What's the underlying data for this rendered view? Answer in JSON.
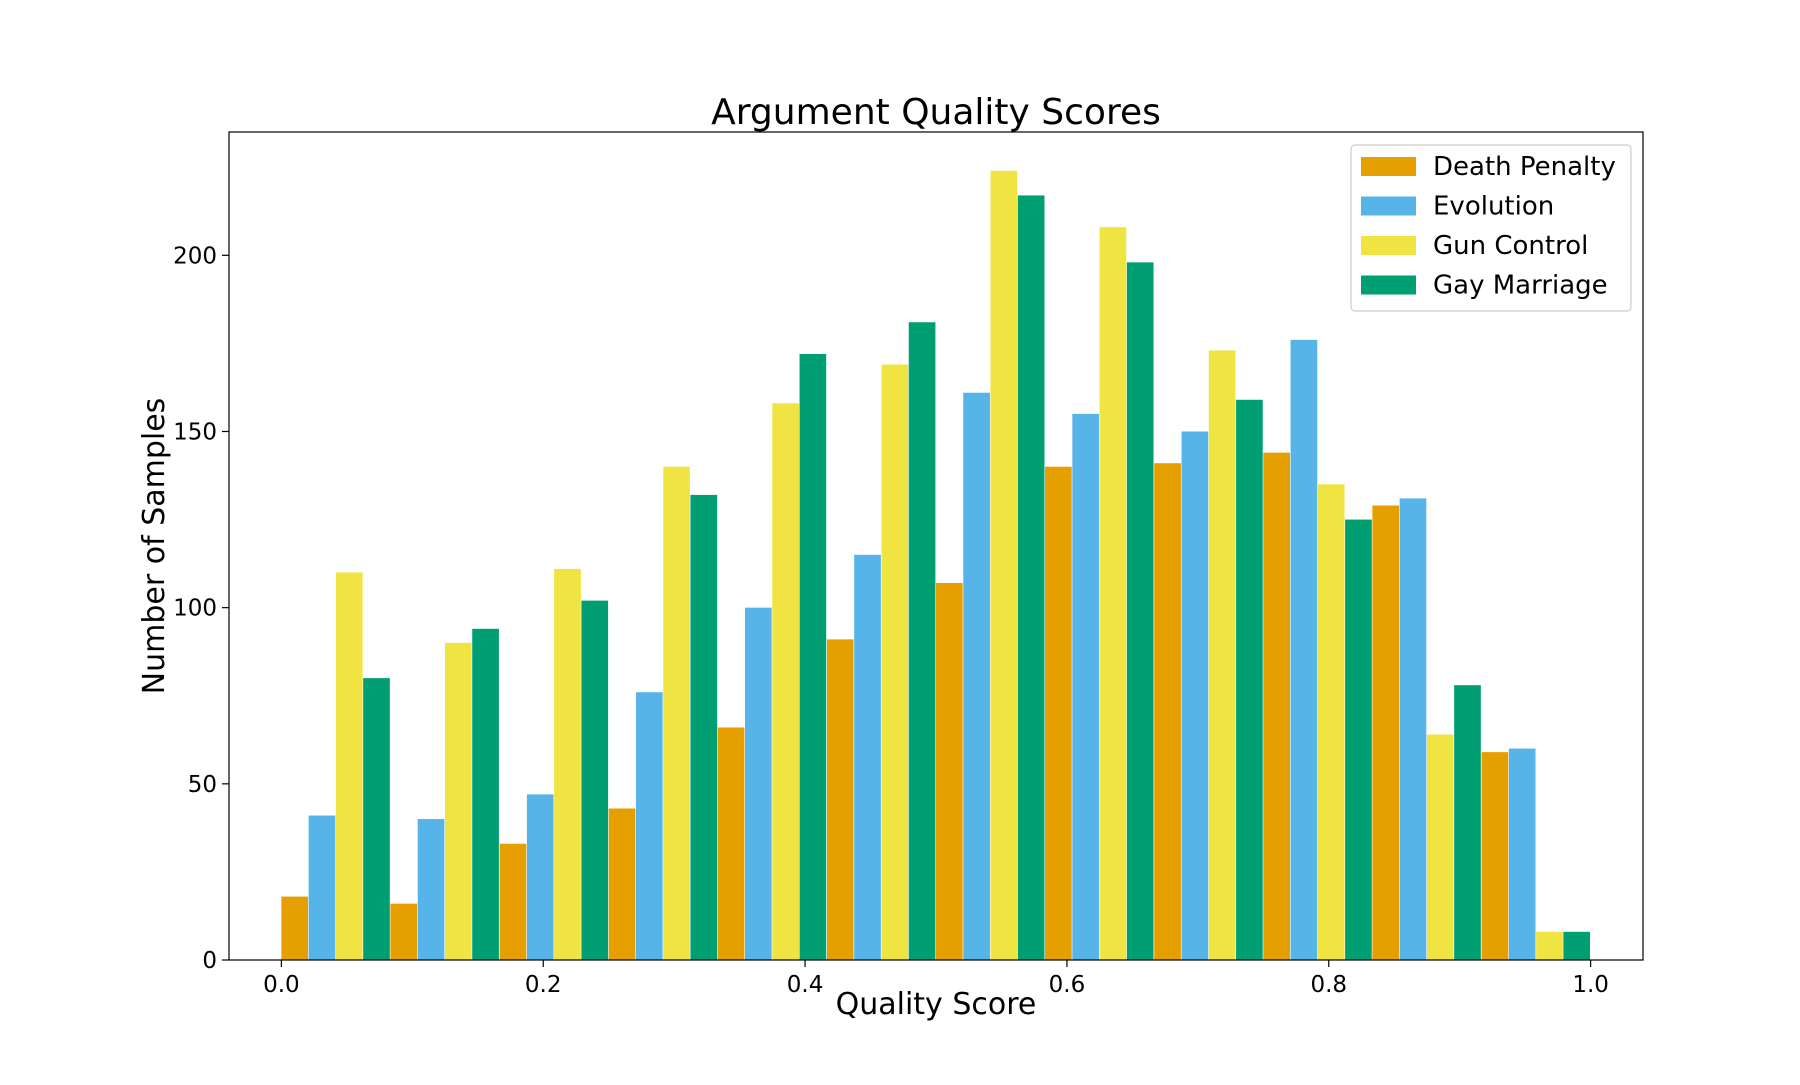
{
  "chart_data": {
    "type": "bar",
    "title": "Argument Quality Scores",
    "xlabel": "Quality Score",
    "ylabel": "Number of Samples",
    "x": [
      0.0,
      0.0833,
      0.1667,
      0.25,
      0.3333,
      0.4167,
      0.5,
      0.5833,
      0.6667,
      0.75,
      0.8333,
      0.9167
    ],
    "bin_width": 0.0833,
    "xlim": [
      -0.04,
      1.04
    ],
    "ylim": [
      0,
      235
    ],
    "xticks": [
      0.0,
      0.2,
      0.4,
      0.6,
      0.8,
      1.0
    ],
    "xtick_labels": [
      "0.0",
      "0.2",
      "0.4",
      "0.6",
      "0.8",
      "1.0"
    ],
    "yticks": [
      0,
      50,
      100,
      150,
      200
    ],
    "ytick_labels": [
      "0",
      "50",
      "100",
      "150",
      "200"
    ],
    "legend_position": "top-right",
    "grid": false,
    "series": [
      {
        "name": "Death Penalty",
        "color": "#E69F00",
        "values": [
          18,
          16,
          33,
          43,
          66,
          91,
          107,
          140,
          141,
          144,
          129,
          59
        ]
      },
      {
        "name": "Evolution",
        "color": "#56B4E9",
        "values": [
          41,
          40,
          47,
          76,
          100,
          115,
          161,
          155,
          150,
          176,
          131,
          60
        ]
      },
      {
        "name": "Gun Control",
        "color": "#F0E442",
        "values": [
          110,
          90,
          111,
          140,
          158,
          169,
          224,
          208,
          173,
          135,
          64,
          8
        ]
      },
      {
        "name": "Gay Marriage",
        "color": "#009E73",
        "values": [
          80,
          94,
          102,
          132,
          172,
          181,
          217,
          198,
          159,
          125,
          78,
          8
        ]
      }
    ]
  }
}
